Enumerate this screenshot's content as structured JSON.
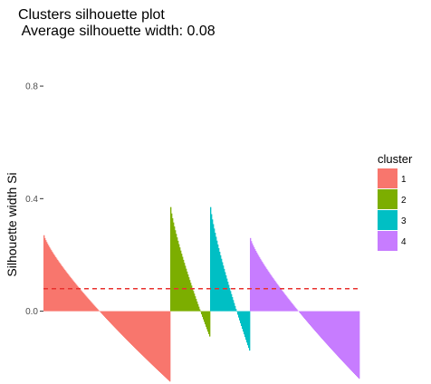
{
  "chart_data": {
    "type": "bar",
    "title_line1": "Clusters silhouette plot",
    "title_line2": " Average silhouette width: 0.08",
    "ylabel": "Silhouette width Si",
    "ylim": [
      -0.13,
      0.9
    ],
    "yticks": [
      0.0,
      0.4,
      0.8
    ],
    "ytick_labels": [
      "0.0",
      "0.4",
      "0.8"
    ],
    "average_silhouette_width": 0.08,
    "average_line_color": "#e8312e",
    "legend": {
      "title": "cluster",
      "placement": "right"
    },
    "clusters": [
      {
        "name": "1",
        "color": "#f8766d",
        "n": 140,
        "max": 0.27,
        "min": -0.25
      },
      {
        "name": "2",
        "color": "#7cae00",
        "n": 44,
        "max": 0.37,
        "min": -0.09
      },
      {
        "name": "3",
        "color": "#00bfc4",
        "n": 44,
        "max": 0.37,
        "min": -0.14
      },
      {
        "name": "4",
        "color": "#c77cff",
        "n": 121,
        "max": 0.26,
        "min": -0.24
      }
    ]
  }
}
